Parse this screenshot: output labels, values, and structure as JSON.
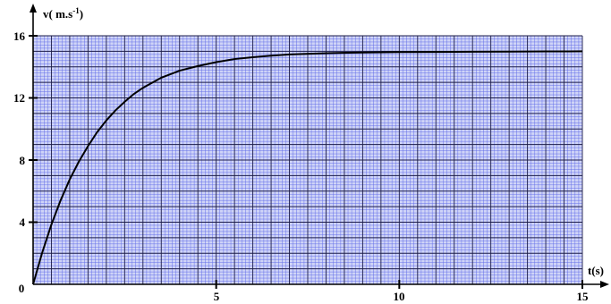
{
  "chart_data": {
    "type": "line",
    "ylabel": "v( m.s",
    "ylabel_sup": "-1",
    "ylabel_close": ")",
    "xlabel": "t(s)",
    "xlim": [
      0,
      15
    ],
    "ylim": [
      0,
      16
    ],
    "x_ticks": [
      "5",
      "10",
      "15"
    ],
    "y_ticks": [
      "4",
      "8",
      "12",
      "16"
    ],
    "origin_label": "0",
    "grid": true,
    "colors": {
      "grid_background": "#cfd4f7",
      "grid_fine": "#5b67e8",
      "grid_major": "#1c1c4a",
      "curve": "#000000"
    },
    "series": [
      {
        "x": [
          0,
          0.25,
          0.5,
          0.75,
          1,
          1.25,
          1.5,
          1.75,
          2,
          2.25,
          2.5,
          2.75,
          3,
          3.5,
          4,
          4.5,
          5,
          5.5,
          6,
          6.5,
          7,
          8,
          9,
          10,
          11,
          12,
          13,
          14,
          15
        ],
        "y": [
          0,
          2.05,
          3.85,
          5.4,
          6.75,
          7.9,
          8.9,
          9.8,
          10.55,
          11.2,
          11.75,
          12.25,
          12.65,
          13.3,
          13.75,
          14.05,
          14.3,
          14.5,
          14.62,
          14.72,
          14.8,
          14.88,
          14.92,
          14.95,
          14.96,
          14.97,
          14.98,
          14.99,
          15.0
        ]
      }
    ]
  }
}
